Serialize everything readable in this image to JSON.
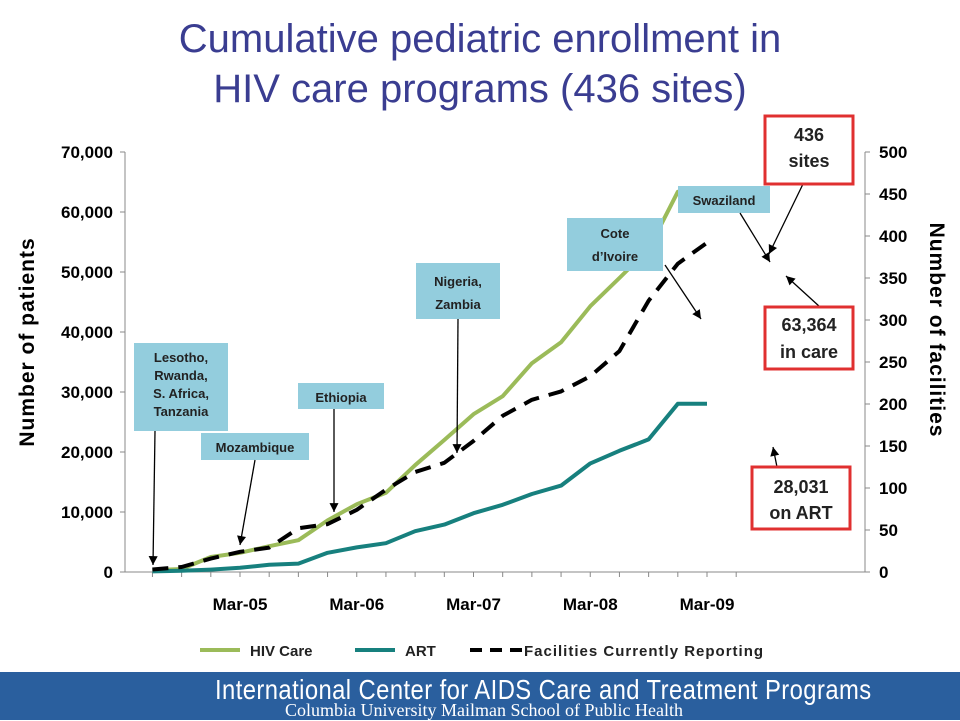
{
  "title_line1": "Cumulative pediatric enrollment in",
  "title_line2": "HIV care programs (436 sites)",
  "footer": {
    "line1": "International Center for AIDS Care and Treatment Programs",
    "line2": "Columbia University Mailman School of Public Health"
  },
  "colors": {
    "title": "#3a3d91",
    "hiv_care": "#9bbb59",
    "art": "#17807e",
    "facilities": "#000000",
    "country_box": "#93cddd",
    "callout_border": "#e03030",
    "footer": "#2a5f9e"
  },
  "chart_data": {
    "type": "line",
    "ylabel": "Number of patients",
    "y2label": "Number of facilities",
    "ylim": [
      0,
      70000
    ],
    "y2lim": [
      0,
      500
    ],
    "x_ticks": [
      "Mar-05",
      "Mar-06",
      "Mar-07",
      "Mar-08",
      "Mar-09"
    ],
    "x_tick_dates": [
      "2005-03",
      "2006-03",
      "2007-03",
      "2008-03",
      "2009-03"
    ],
    "y_ticks": [
      "0",
      "10,000",
      "20,000",
      "30,000",
      "40,000",
      "50,000",
      "60,000",
      "70,000"
    ],
    "y_tick_values": [
      0,
      10000,
      20000,
      30000,
      40000,
      50000,
      60000,
      70000
    ],
    "y2_ticks": [
      "0",
      "50",
      "100",
      "150",
      "200",
      "250",
      "300",
      "350",
      "400",
      "450",
      "500"
    ],
    "y2_tick_values": [
      0,
      50,
      100,
      150,
      200,
      250,
      300,
      350,
      400,
      450,
      500
    ],
    "series": [
      {
        "name": "HIV Care",
        "axis": "left",
        "style": "solid",
        "x": [
          "2004-06",
          "2004-09",
          "2004-12",
          "2005-03",
          "2005-06",
          "2005-09",
          "2005-12",
          "2006-03",
          "2006-06",
          "2006-09",
          "2006-12",
          "2007-03",
          "2007-06",
          "2007-09",
          "2007-12",
          "2008-03",
          "2008-06",
          "2008-09",
          "2008-12",
          "2009-03"
        ],
        "values": [
          300,
          500,
          2500,
          3200,
          4300,
          5300,
          8600,
          11300,
          13200,
          17800,
          22000,
          26300,
          29300,
          34800,
          38300,
          44300,
          49000,
          53800,
          63364,
          63364
        ]
      },
      {
        "name": "ART",
        "axis": "left",
        "style": "solid",
        "x": [
          "2004-06",
          "2004-09",
          "2004-12",
          "2005-03",
          "2005-06",
          "2005-09",
          "2005-12",
          "2006-03",
          "2006-06",
          "2006-09",
          "2006-12",
          "2007-03",
          "2007-06",
          "2007-09",
          "2007-12",
          "2008-03",
          "2008-06",
          "2008-09",
          "2008-12",
          "2009-03"
        ],
        "values": [
          100,
          200,
          400,
          700,
          1200,
          1400,
          3200,
          4100,
          4800,
          6800,
          7900,
          9800,
          11200,
          13000,
          14400,
          18100,
          20200,
          22100,
          28031,
          28031
        ]
      },
      {
        "name": "Facilities Currently Reporting",
        "axis": "right",
        "style": "dashed",
        "x": [
          "2004-06",
          "2004-09",
          "2004-12",
          "2005-03",
          "2005-06",
          "2005-09",
          "2005-12",
          "2006-03",
          "2006-06",
          "2006-09",
          "2006-12",
          "2007-03",
          "2007-06",
          "2007-09",
          "2007-12",
          "2008-03",
          "2008-06",
          "2008-09",
          "2008-12",
          "2009-03"
        ],
        "values": [
          3,
          6,
          16,
          24,
          29,
          52,
          57,
          74,
          98,
          119,
          130,
          156,
          186,
          205,
          215,
          233,
          263,
          323,
          367,
          392
        ]
      }
    ],
    "country_labels": [
      {
        "text": [
          "Lesotho,",
          "Rwanda,",
          "S. Africa,",
          "Tanzania"
        ],
        "date": "2004-09"
      },
      {
        "text": [
          "Mozambique"
        ],
        "date": "2005-03"
      },
      {
        "text": [
          "Ethiopia"
        ],
        "date": "2006-01"
      },
      {
        "text": [
          "Nigeria,",
          "Zambia"
        ],
        "date": "2006-10"
      },
      {
        "text": [
          "Cote",
          "d’Ivoire"
        ],
        "date": "2008-03"
      },
      {
        "text": [
          "Swaziland"
        ],
        "date": "2008-12"
      }
    ],
    "callouts": [
      {
        "lines": [
          "436",
          "sites"
        ]
      },
      {
        "lines": [
          "63,364",
          "in care"
        ]
      },
      {
        "lines": [
          "28,031",
          "on ART"
        ]
      }
    ],
    "legend_position": "bottom"
  }
}
